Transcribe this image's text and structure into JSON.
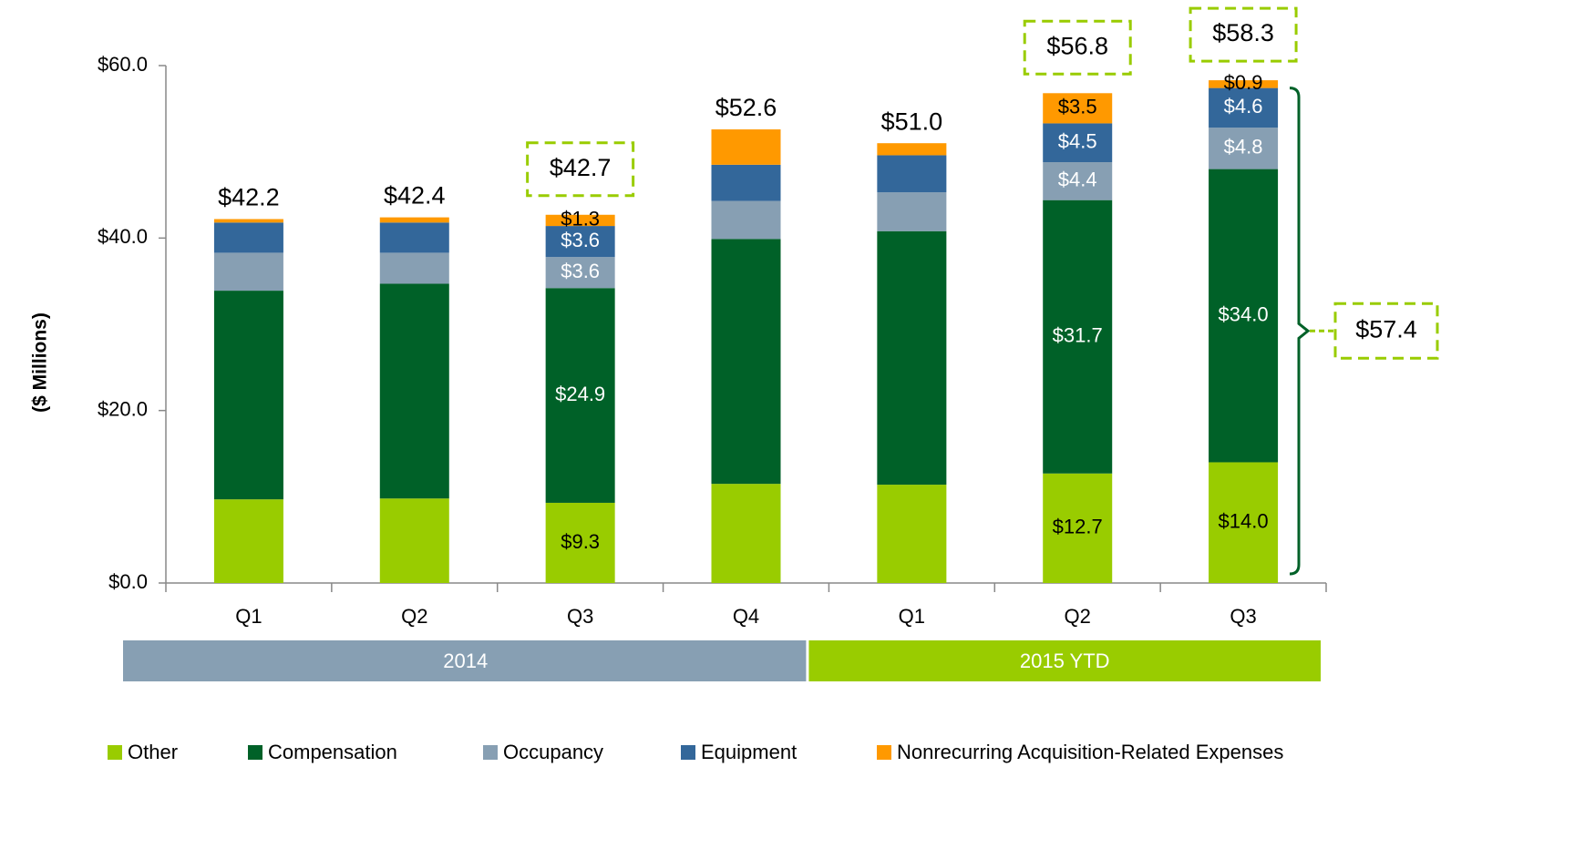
{
  "chart_data": {
    "type": "stacked_bar",
    "y_label": "($ Millions)",
    "categories": [
      "Q1",
      "Q2",
      "Q3",
      "Q4",
      "Q1",
      "Q2",
      "Q3"
    ],
    "groups": [
      {
        "label": "2014",
        "count": 4,
        "color": "#879fb3"
      },
      {
        "label": "2015 YTD",
        "count": 3,
        "color": "#99cc00"
      }
    ],
    "ylim": [
      0,
      60
    ],
    "yticks": [
      {
        "value": 0,
        "label": "$0.0"
      },
      {
        "value": 20,
        "label": "$20.0"
      },
      {
        "value": 40,
        "label": "$40.0"
      },
      {
        "value": 60,
        "label": "$60.0"
      }
    ],
    "series": [
      {
        "name": "Other",
        "color": "#99cc00",
        "label_color": "#000000",
        "values": [
          9.7,
          9.8,
          9.3,
          11.5,
          11.4,
          12.7,
          14.0
        ],
        "value_labels": [
          null,
          null,
          "$9.3",
          null,
          null,
          "$12.7",
          "$14.0"
        ]
      },
      {
        "name": "Compensation",
        "color": "#006128",
        "label_color": "#ffffff",
        "values": [
          24.2,
          24.9,
          24.9,
          28.4,
          29.4,
          31.7,
          34.0
        ],
        "value_labels": [
          null,
          null,
          "$24.9",
          null,
          null,
          "$31.7",
          "$34.0"
        ]
      },
      {
        "name": "Occupancy",
        "color": "#879fb3",
        "label_color": "#ffffff",
        "values": [
          4.4,
          3.6,
          3.6,
          4.4,
          4.5,
          4.4,
          4.8
        ],
        "value_labels": [
          null,
          null,
          "$3.6",
          null,
          null,
          "$4.4",
          "$4.8"
        ]
      },
      {
        "name": "Equipment",
        "color": "#33679a",
        "label_color": "#ffffff",
        "values": [
          3.5,
          3.5,
          3.6,
          4.2,
          4.3,
          4.5,
          4.6
        ],
        "value_labels": [
          null,
          null,
          "$3.6",
          null,
          null,
          "$4.5",
          "$4.6"
        ]
      },
      {
        "name": "Nonrecurring Acquisition-Related Expenses",
        "color": "#ff9900",
        "label_color": "#000000",
        "values": [
          0.4,
          0.6,
          1.3,
          4.1,
          1.4,
          3.5,
          0.9
        ],
        "value_labels": [
          null,
          null,
          "$1.3",
          null,
          null,
          "$3.5",
          "$0.9"
        ]
      }
    ],
    "totals": {
      "values": [
        42.2,
        42.4,
        42.7,
        52.6,
        51.0,
        56.8,
        58.3
      ],
      "value_labels": [
        "$42.2",
        "$42.4",
        "$42.7",
        "$52.6",
        "$51.0",
        "$56.8",
        "$58.3"
      ],
      "boxed": [
        false,
        false,
        true,
        false,
        false,
        true,
        true
      ]
    },
    "bracket": {
      "category": 6,
      "value": 57.4,
      "label": "$57.4"
    }
  }
}
